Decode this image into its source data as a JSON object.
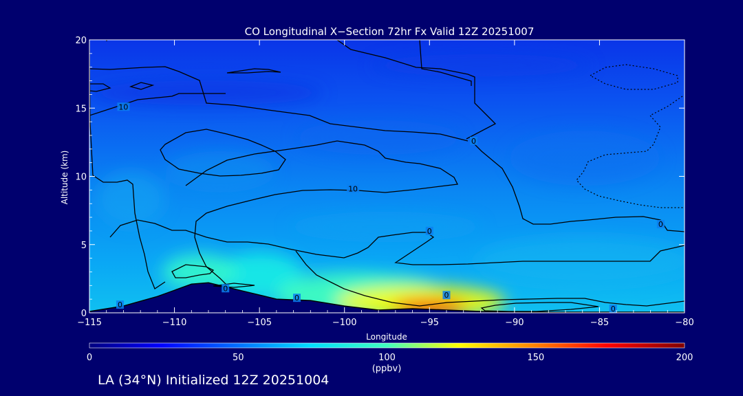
{
  "chart_data": {
    "type": "heatmap",
    "title": "CO Longitudinal X−Section 72hr  Fx Valid 12Z 20251007",
    "subtitle": "LA (34°N) Initialized 12Z 20251004",
    "xlabel": "Longitude",
    "ylabel": "Altitude (km)",
    "xlim": [
      -115,
      -80
    ],
    "ylim": [
      0,
      20
    ],
    "x_ticks": [
      -115,
      -110,
      -105,
      -100,
      -95,
      -90,
      -85,
      -80
    ],
    "x_tick_labels": [
      "−115",
      "−110",
      "−105",
      "−100",
      "−95",
      "−90",
      "−85",
      "−80"
    ],
    "y_ticks": [
      0,
      5,
      10,
      15,
      20
    ],
    "y_tick_labels": [
      "0",
      "5",
      "10",
      "15",
      "20"
    ],
    "colorbar": {
      "min": 0,
      "max": 200,
      "ticks": [
        0,
        50,
        100,
        150,
        200
      ],
      "tick_labels": [
        "0",
        "50",
        "100",
        "150",
        "200"
      ],
      "units": "(ppbv)",
      "colors": [
        "#000080",
        "#0000ff",
        "#0070ff",
        "#00ddff",
        "#40ffbf",
        "#ffff00",
        "#ff8000",
        "#ff0000",
        "#800000"
      ]
    },
    "contour_labels": [
      {
        "text": "10",
        "lon": -113.0,
        "alt": 15.1
      },
      {
        "text": "10",
        "lon": -99.5,
        "alt": 9.1
      },
      {
        "text": "0",
        "lon": -92.4,
        "alt": 12.6
      },
      {
        "text": "0",
        "lon": -95.0,
        "alt": 6.0
      },
      {
        "text": "0",
        "lon": -94.0,
        "alt": 1.3
      },
      {
        "text": "0",
        "lon": -81.4,
        "alt": 6.5
      },
      {
        "text": "0",
        "lon": -113.2,
        "alt": 0.6
      },
      {
        "text": "0",
        "lon": -107.0,
        "alt": 1.8
      },
      {
        "text": "0",
        "lon": -102.8,
        "alt": 1.1
      },
      {
        "text": "0",
        "lon": -84.2,
        "alt": 0.3
      }
    ],
    "terrain": [
      [
        -115,
        0.1
      ],
      [
        -113,
        0.5
      ],
      [
        -111,
        1.2
      ],
      [
        -109,
        2.1
      ],
      [
        -108,
        2.2
      ],
      [
        -106,
        1.6
      ],
      [
        -104,
        1.0
      ],
      [
        -102,
        0.9
      ],
      [
        -100,
        0.5
      ],
      [
        -98,
        0.2
      ],
      [
        -96,
        0.3
      ],
      [
        -94,
        0.2
      ],
      [
        -92,
        0.1
      ],
      [
        -88,
        0.05
      ],
      [
        -80,
        0.05
      ]
    ],
    "plumes": [
      {
        "lon": -95.0,
        "alt": 0.4,
        "r_lon": 2.2,
        "r_alt": 0.6,
        "value": 170
      },
      {
        "lon": -95.5,
        "alt": 0.8,
        "r_lon": 5.0,
        "r_alt": 1.2,
        "value": 125
      },
      {
        "lon": -99.0,
        "alt": 1.3,
        "r_lon": 5.0,
        "r_alt": 1.6,
        "value": 100
      },
      {
        "lon": -108.5,
        "alt": 3.0,
        "r_lon": 2.2,
        "r_alt": 1.3,
        "value": 95
      },
      {
        "lon": -105.0,
        "alt": 2.8,
        "r_lon": 2.5,
        "r_alt": 1.6,
        "value": 85
      }
    ]
  }
}
